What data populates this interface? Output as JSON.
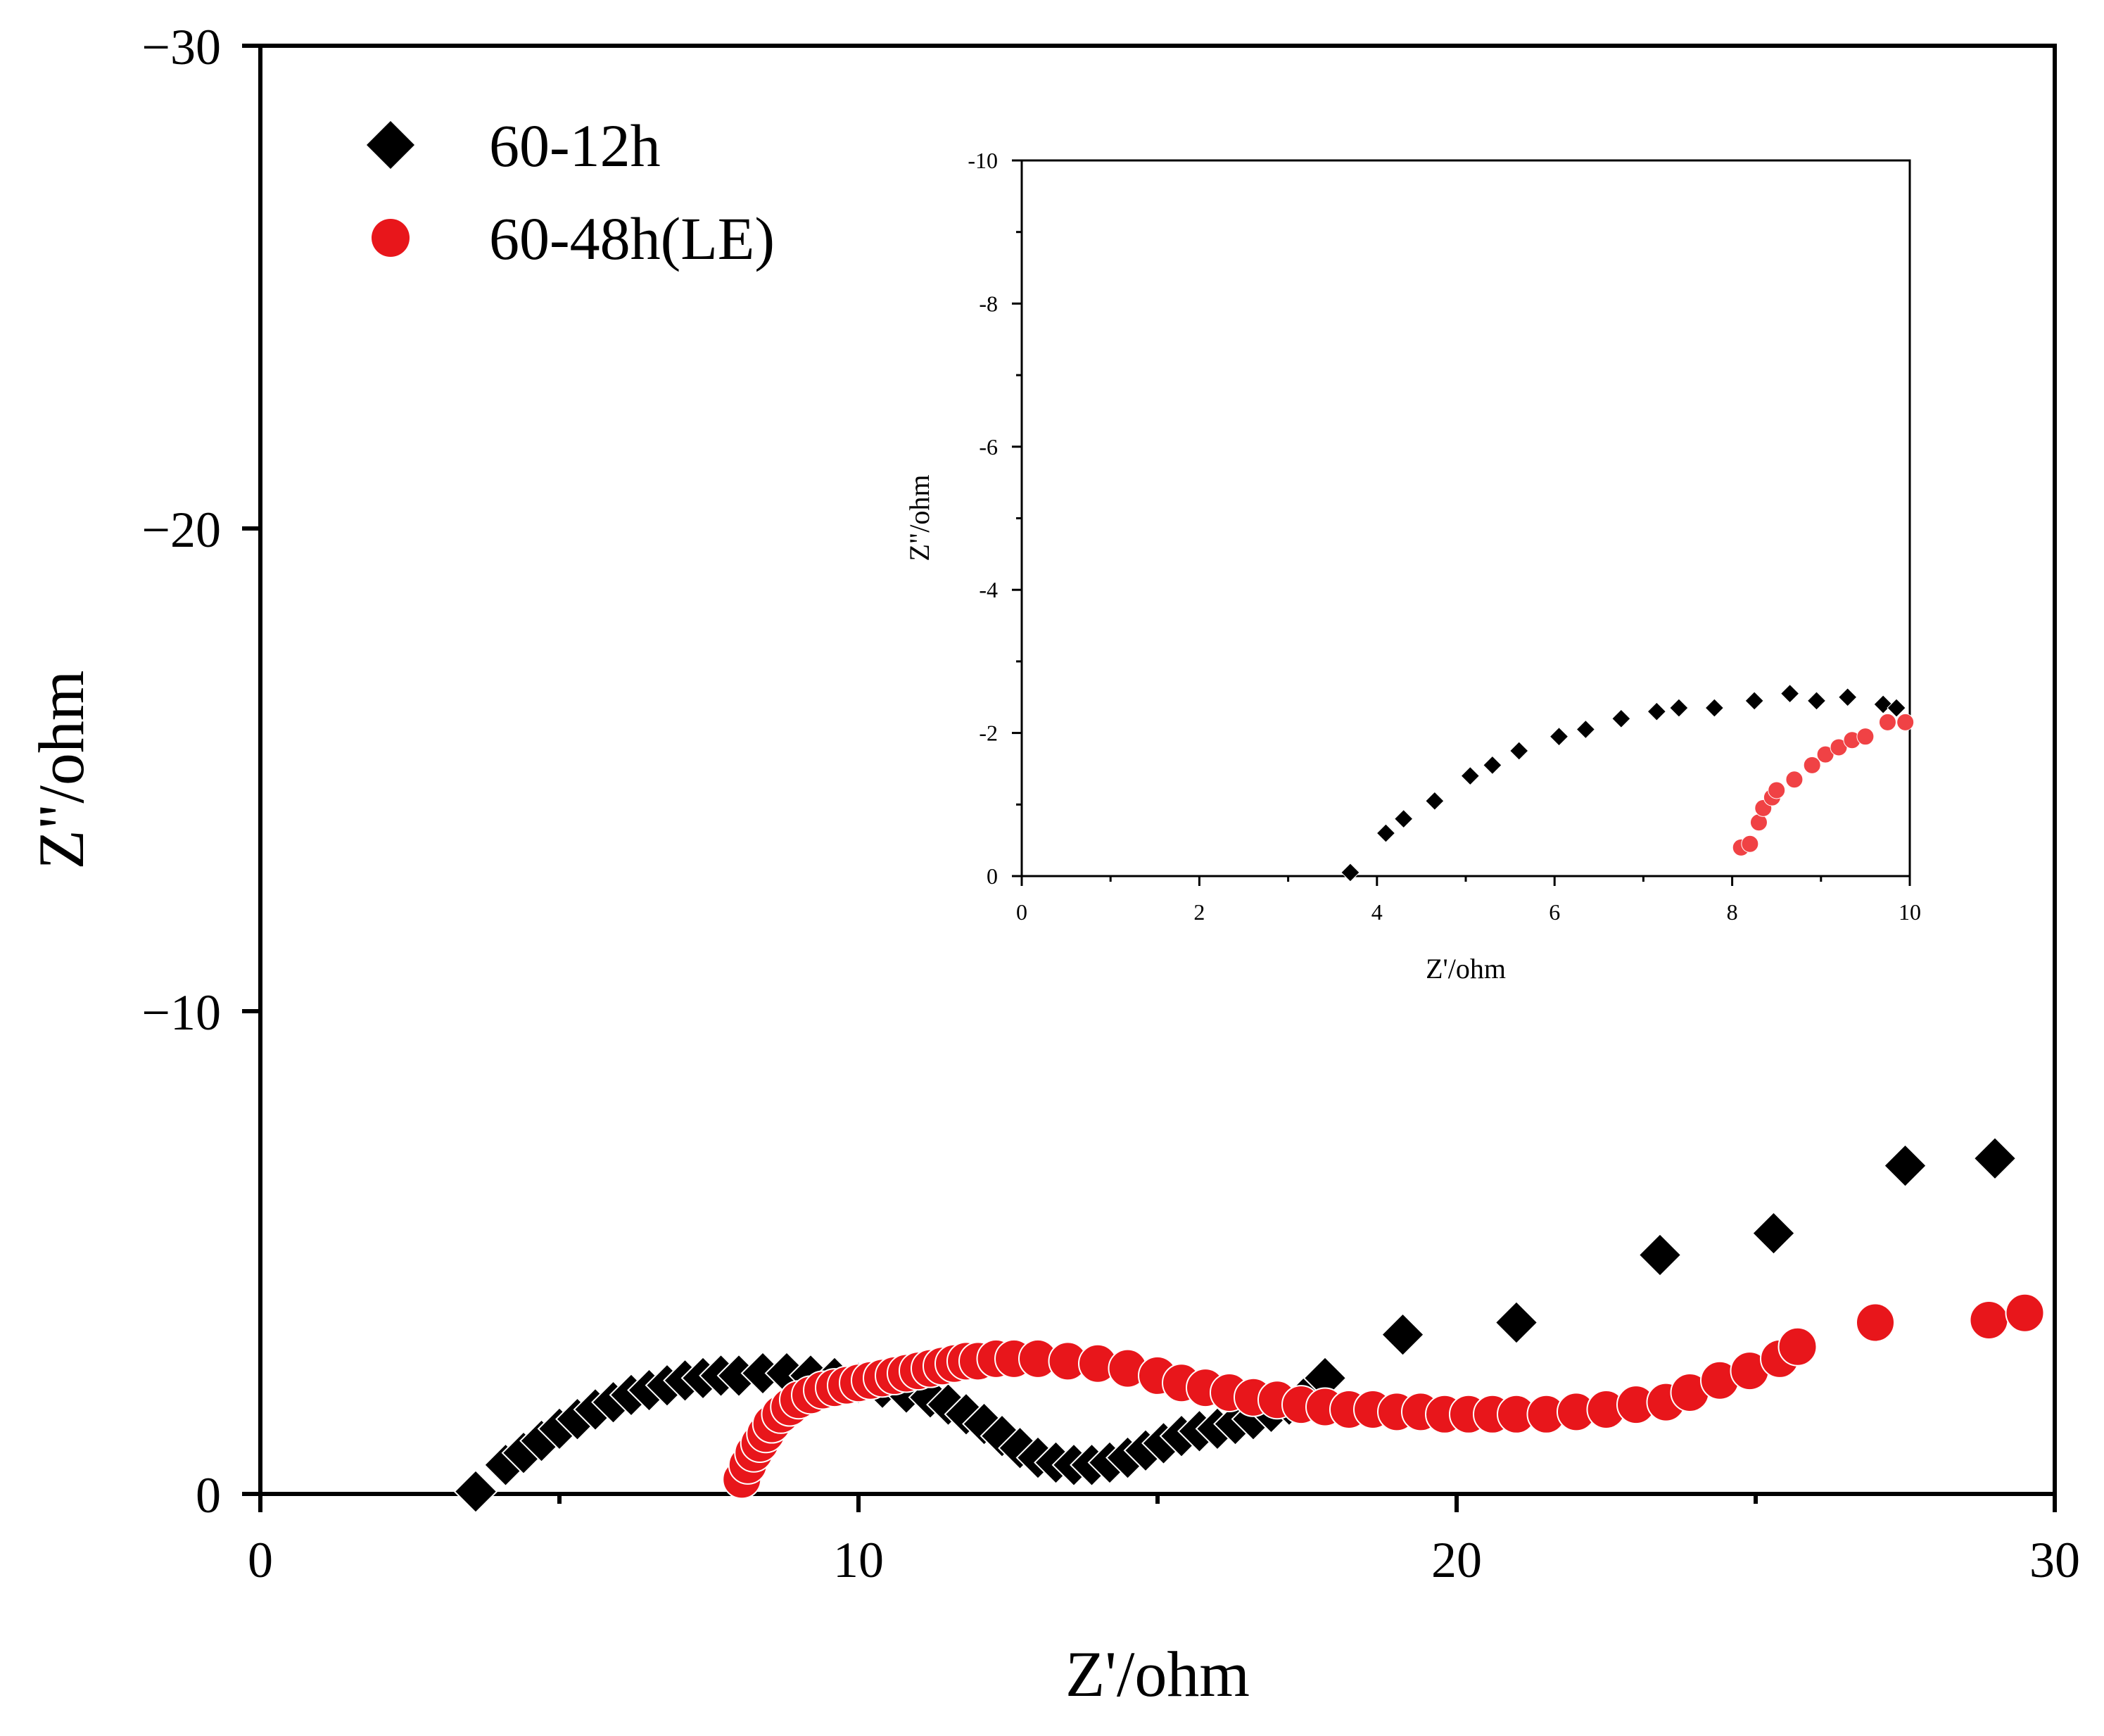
{
  "chart_data": [
    {
      "type": "scatter",
      "id": "main",
      "xlabel": "Z'/ohm",
      "ylabel": "Z\"/ohm",
      "xlim": [
        0,
        30
      ],
      "ylim": [
        0,
        -30
      ],
      "xticks": [
        0,
        10,
        20,
        30
      ],
      "yticks": [
        0,
        -10,
        -20,
        -30
      ],
      "xtick_labels": [
        "0",
        "10",
        "20",
        "30"
      ],
      "ytick_labels": [
        "0",
        "−10",
        "−20",
        "−30"
      ],
      "legend_position": "top-left",
      "series": [
        {
          "name": "60-12h",
          "marker": "diamond",
          "color": "#000000",
          "x": [
            3.6,
            4.1,
            4.4,
            4.7,
            5.0,
            5.3,
            5.6,
            5.9,
            6.2,
            6.5,
            6.8,
            7.1,
            7.4,
            7.7,
            8.0,
            8.4,
            8.8,
            9.2,
            9.6,
            10.0,
            10.4,
            10.8,
            11.2,
            11.5,
            11.8,
            12.1,
            12.4,
            12.7,
            13.0,
            13.3,
            13.6,
            13.9,
            14.2,
            14.5,
            14.8,
            15.1,
            15.4,
            15.7,
            16.0,
            16.3,
            16.6,
            16.9,
            17.2,
            17.5,
            17.8,
            19.1,
            21.0,
            23.4,
            25.3,
            27.5,
            29.0
          ],
          "y": [
            -0.05,
            -0.6,
            -0.85,
            -1.1,
            -1.35,
            -1.55,
            -1.75,
            -1.9,
            -2.05,
            -2.15,
            -2.25,
            -2.35,
            -2.4,
            -2.45,
            -2.45,
            -2.5,
            -2.5,
            -2.45,
            -2.4,
            -2.3,
            -2.2,
            -2.1,
            -2.0,
            -1.85,
            -1.65,
            -1.45,
            -1.2,
            -0.95,
            -0.75,
            -0.65,
            -0.6,
            -0.6,
            -0.65,
            -0.75,
            -0.9,
            -1.05,
            -1.2,
            -1.3,
            -1.35,
            -1.45,
            -1.55,
            -1.7,
            -1.85,
            -2.05,
            -2.4,
            -3.3,
            -3.55,
            -4.95,
            -5.4,
            -6.8,
            -6.95
          ]
        },
        {
          "name": "60-48h(LE)",
          "marker": "circle",
          "color": "#e8161b",
          "x": [
            8.05,
            8.15,
            8.25,
            8.35,
            8.45,
            8.55,
            8.7,
            8.85,
            9.0,
            9.2,
            9.4,
            9.6,
            9.8,
            10.0,
            10.2,
            10.4,
            10.6,
            10.8,
            11.0,
            11.2,
            11.4,
            11.6,
            11.8,
            12.0,
            12.3,
            12.6,
            13.0,
            13.5,
            14.0,
            14.5,
            15.0,
            15.4,
            15.8,
            16.2,
            16.6,
            17.0,
            17.4,
            17.8,
            18.2,
            18.6,
            19.0,
            19.4,
            19.8,
            20.2,
            20.6,
            21.0,
            21.5,
            22.0,
            22.5,
            23.0,
            23.5,
            23.9,
            24.4,
            24.9,
            25.4,
            25.7,
            27.0,
            28.9,
            29.5
          ],
          "y": [
            -0.3,
            -0.6,
            -0.85,
            -1.05,
            -1.25,
            -1.45,
            -1.65,
            -1.8,
            -1.95,
            -2.05,
            -2.15,
            -2.2,
            -2.25,
            -2.3,
            -2.35,
            -2.4,
            -2.45,
            -2.5,
            -2.55,
            -2.6,
            -2.65,
            -2.7,
            -2.75,
            -2.75,
            -2.8,
            -2.8,
            -2.8,
            -2.75,
            -2.7,
            -2.6,
            -2.45,
            -2.3,
            -2.2,
            -2.1,
            -2.0,
            -1.95,
            -1.85,
            -1.8,
            -1.75,
            -1.75,
            -1.7,
            -1.7,
            -1.65,
            -1.65,
            -1.65,
            -1.65,
            -1.65,
            -1.7,
            -1.75,
            -1.85,
            -1.9,
            -2.1,
            -2.35,
            -2.55,
            -2.8,
            -3.05,
            -3.55,
            -3.6,
            -3.75
          ]
        }
      ]
    },
    {
      "type": "scatter",
      "id": "inset",
      "xlabel": "Z'/ohm",
      "ylabel": "Z\"/ohm",
      "xlim": [
        0,
        10
      ],
      "ylim": [
        0,
        -10
      ],
      "xticks": [
        0,
        2,
        4,
        6,
        8,
        10
      ],
      "yticks": [
        0,
        -2,
        -4,
        -6,
        -8,
        -10
      ],
      "xtick_labels": [
        "0",
        "2",
        "4",
        "6",
        "8",
        "10"
      ],
      "ytick_labels": [
        "0",
        "-2",
        "-4",
        "-6",
        "-8",
        "-10"
      ],
      "series": [
        {
          "name": "60-12h",
          "marker": "diamond",
          "color": "#000000",
          "x": [
            3.7,
            4.1,
            4.3,
            4.65,
            5.05,
            5.3,
            5.6,
            6.05,
            6.35,
            6.75,
            7.15,
            7.4,
            7.8,
            8.25,
            8.65,
            8.95,
            9.3,
            9.7,
            9.85
          ],
          "y": [
            -0.05,
            -0.6,
            -0.8,
            -1.05,
            -1.4,
            -1.55,
            -1.75,
            -1.95,
            -2.05,
            -2.2,
            -2.3,
            -2.35,
            -2.35,
            -2.45,
            -2.55,
            -2.45,
            -2.5,
            -2.4,
            -2.35
          ]
        },
        {
          "name": "60-48h(LE)",
          "marker": "circle",
          "color": "#f04245",
          "x": [
            8.1,
            8.2,
            8.3,
            8.35,
            8.45,
            8.5,
            8.7,
            8.9,
            9.05,
            9.2,
            9.35,
            9.5,
            9.75,
            9.95
          ],
          "y": [
            -0.4,
            -0.45,
            -0.75,
            -0.95,
            -1.1,
            -1.2,
            -1.35,
            -1.55,
            -1.7,
            -1.8,
            -1.9,
            -1.95,
            -2.15,
            -2.15
          ]
        }
      ]
    }
  ]
}
